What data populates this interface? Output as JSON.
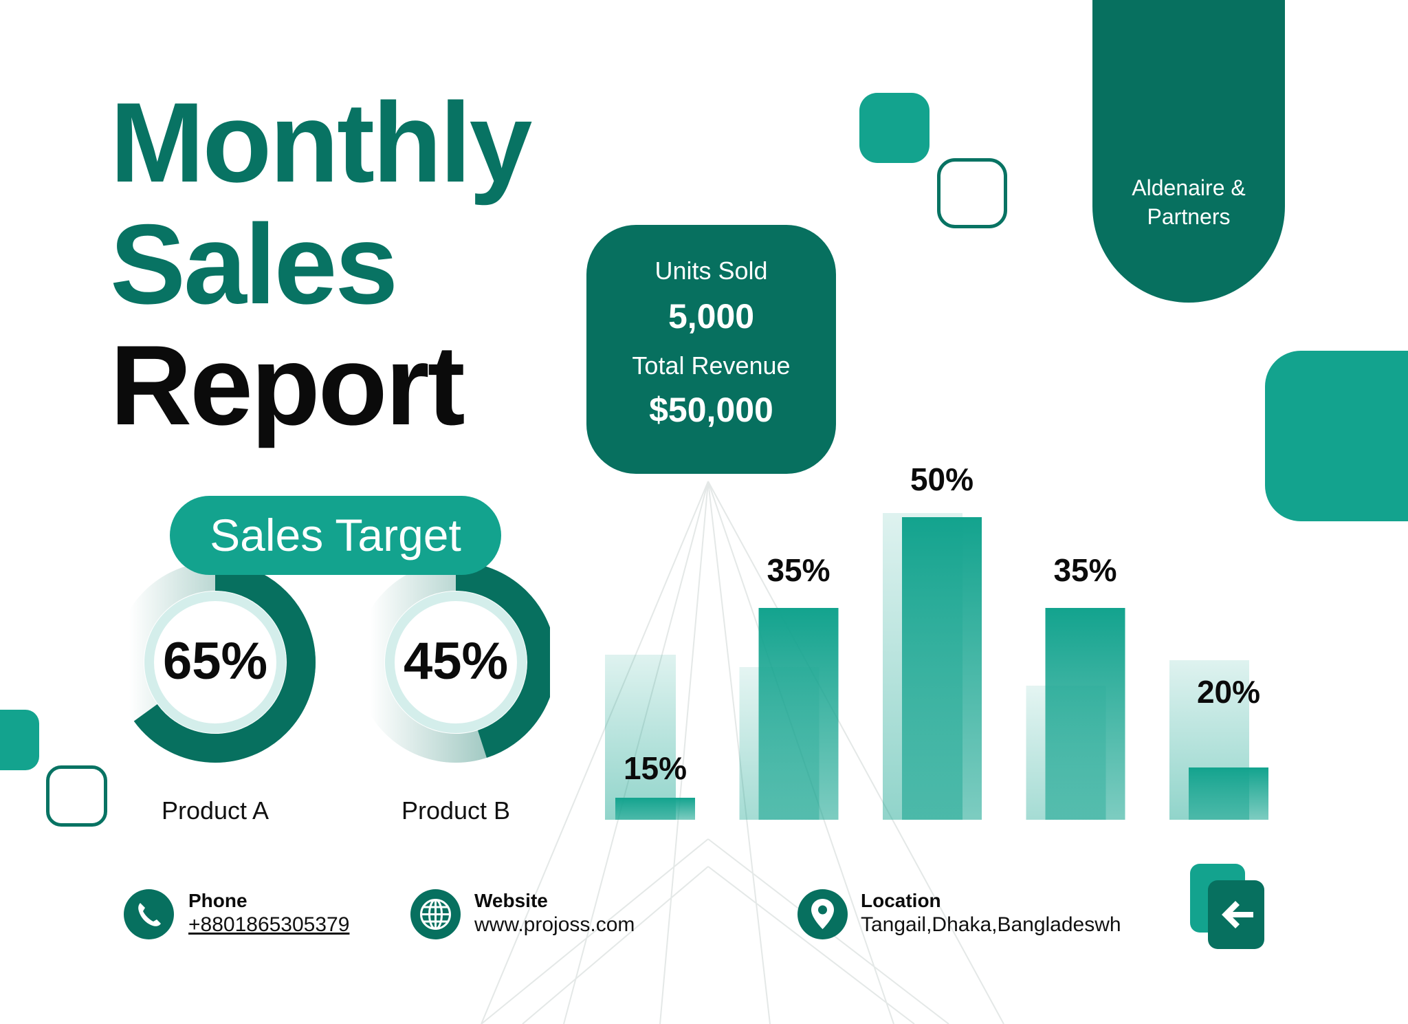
{
  "header": {
    "title_line1": "Monthly",
    "title_line2": "Sales",
    "title_line3": "Report"
  },
  "company": {
    "name": "Aldenaire & Partners"
  },
  "stats": {
    "units_label": "Units Sold",
    "units_value": "5,000",
    "revenue_label": "Total Revenue",
    "revenue_value": "$50,000"
  },
  "sales_target": {
    "label": "Sales Target",
    "products": [
      {
        "name": "Product A",
        "value": 65,
        "label": "65%"
      },
      {
        "name": "Product B",
        "value": 45,
        "label": "45%"
      }
    ]
  },
  "chart_data": [
    {
      "type": "pie",
      "title": "Sales Target",
      "categories": [
        "Product A",
        "Product B"
      ],
      "values": [
        65,
        45
      ]
    },
    {
      "type": "bar",
      "categories": [
        "",
        "",
        "",
        "",
        ""
      ],
      "values": [
        15,
        35,
        50,
        35,
        20
      ],
      "labels": [
        "15%",
        "35%",
        "50%",
        "35%",
        "20%"
      ],
      "ylim": [
        0,
        50
      ],
      "grid": false
    }
  ],
  "contacts": {
    "phone_title": "Phone",
    "phone_value": "+8801865305379",
    "website_title": "Website",
    "website_value": "www.projoss.com",
    "location_title": "Location",
    "location_value": "Tangail,Dhaka,Bangladeswh"
  },
  "colors": {
    "dark_teal": "#07705f",
    "teal": "#13a38e",
    "title_teal": "#087363"
  },
  "icons": {
    "phone": "phone-icon",
    "website": "globe-icon",
    "location": "map-pin-icon",
    "back": "arrow-left-icon"
  }
}
